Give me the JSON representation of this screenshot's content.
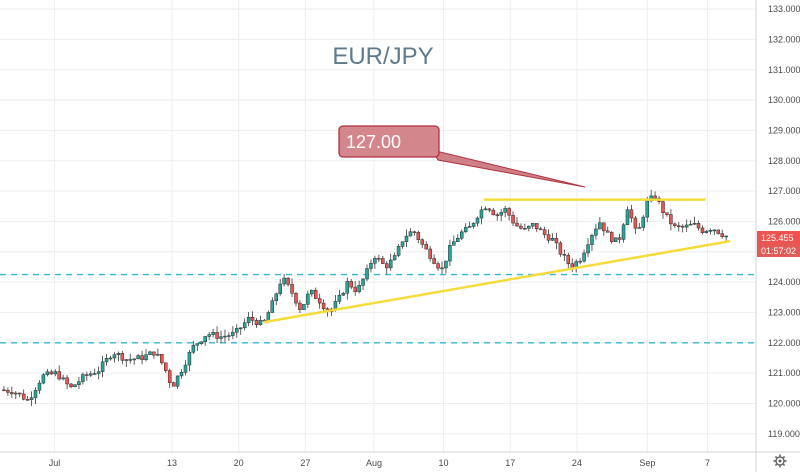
{
  "chart_data": {
    "type": "candlestick",
    "title": "EUR/JPY",
    "callout": "127.00",
    "current_price": "125.455",
    "countdown": "01:57:02",
    "ylim": [
      118.4,
      133.3
    ],
    "y_ticks": [
      "119.000",
      "120.000",
      "121.000",
      "122.000",
      "123.000",
      "124.000",
      "125.000",
      "126.000",
      "127.000",
      "128.000",
      "129.000",
      "130.000",
      "131.000",
      "132.000",
      "133.000"
    ],
    "x_ticks": [
      {
        "label": "Jul",
        "t": 3.3
      },
      {
        "label": "13",
        "t": 15.8
      },
      {
        "label": "20",
        "t": 22.9
      },
      {
        "label": "27",
        "t": 30.0
      },
      {
        "label": "Aug",
        "t": 37.3
      },
      {
        "label": "10",
        "t": 44.7
      },
      {
        "label": "17",
        "t": 51.8
      },
      {
        "label": "24",
        "t": 58.9
      },
      {
        "label": "Sep",
        "t": 66.4
      },
      {
        "label": "7",
        "t": 72.8
      }
    ],
    "x_range": [
      -2.5,
      77.0
    ],
    "dashed_levels": [
      124.25,
      122.0
    ],
    "resistance": {
      "t1": 49.0,
      "t2": 72.6,
      "y": 126.72
    },
    "support": {
      "t1": 25.6,
      "t2": 75.2,
      "y1": 122.68,
      "y2": 125.35
    },
    "path": [
      [
        -2.5,
        120.45
      ],
      [
        -1,
        120.4
      ],
      [
        0.5,
        120.1
      ],
      [
        2,
        120.9
      ],
      [
        3.5,
        121.0
      ],
      [
        5,
        120.5
      ],
      [
        6.5,
        120.9
      ],
      [
        8,
        121.1
      ],
      [
        9.5,
        121.7
      ],
      [
        11,
        121.45
      ],
      [
        12.5,
        121.5
      ],
      [
        14,
        121.7
      ],
      [
        15,
        121.2
      ],
      [
        15.8,
        120.55
      ],
      [
        16.8,
        121.1
      ],
      [
        18,
        121.85
      ],
      [
        19.5,
        122.3
      ],
      [
        21,
        122.2
      ],
      [
        22.5,
        122.3
      ],
      [
        24,
        122.8
      ],
      [
        25.5,
        122.6
      ],
      [
        26.5,
        123.3
      ],
      [
        27.5,
        124.15
      ],
      [
        28.5,
        123.7
      ],
      [
        29.5,
        123.1
      ],
      [
        30.5,
        123.7
      ],
      [
        31.5,
        123.4
      ],
      [
        32.5,
        123.0
      ],
      [
        33.5,
        123.4
      ],
      [
        34.5,
        124.0
      ],
      [
        35.5,
        123.7
      ],
      [
        36.5,
        124.3
      ],
      [
        37.3,
        124.9
      ],
      [
        38.5,
        124.5
      ],
      [
        39.5,
        124.8
      ],
      [
        40.5,
        125.5
      ],
      [
        41.5,
        125.7
      ],
      [
        42.5,
        125.2
      ],
      [
        43.5,
        124.8
      ],
      [
        44.5,
        124.4
      ],
      [
        45.5,
        125.2
      ],
      [
        46.5,
        125.6
      ],
      [
        47.5,
        125.8
      ],
      [
        48.5,
        126.3
      ],
      [
        49.3,
        126.55
      ],
      [
        50.3,
        126.2
      ],
      [
        51.3,
        126.4
      ],
      [
        52.3,
        125.9
      ],
      [
        53.3,
        125.7
      ],
      [
        54.3,
        125.9
      ],
      [
        55.3,
        125.6
      ],
      [
        56.3,
        125.4
      ],
      [
        57.3,
        124.9
      ],
      [
        58.3,
        124.5
      ],
      [
        59.3,
        124.8
      ],
      [
        60.3,
        125.5
      ],
      [
        61.3,
        126.0
      ],
      [
        62.3,
        125.5
      ],
      [
        63.3,
        125.3
      ],
      [
        64.3,
        126.5
      ],
      [
        65.3,
        125.5
      ],
      [
        66.3,
        126.6
      ],
      [
        67.2,
        126.85
      ],
      [
        68.3,
        126.2
      ],
      [
        69.3,
        125.8
      ],
      [
        70.3,
        125.8
      ],
      [
        71.3,
        125.9
      ],
      [
        72.3,
        125.7
      ],
      [
        73.3,
        125.8
      ],
      [
        74.3,
        125.6
      ],
      [
        75.2,
        125.45
      ]
    ]
  }
}
